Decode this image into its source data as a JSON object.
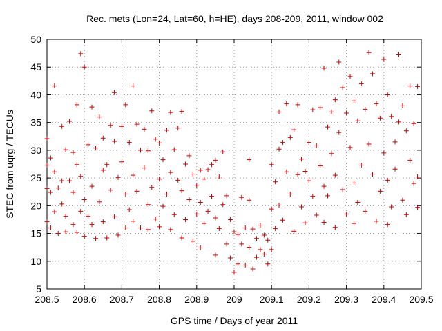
{
  "chart_data": {
    "type": "scatter",
    "title": "Rec. mets (Lon=24, Lat=60, h=HE), days 208-209, 2011, window 002",
    "xlabel": "GPS time / Days of year 2011",
    "ylabel": "STEC from uqrg / TECUs",
    "xlim": [
      208.5,
      209.5
    ],
    "ylim": [
      5,
      50
    ],
    "xticks": [
      208.5,
      208.6,
      208.7,
      208.8,
      208.9,
      209,
      209.1,
      209.2,
      209.3,
      209.4,
      209.5
    ],
    "xtick_labels": [
      "208.5",
      "208.6",
      "208.7",
      "208.8",
      "208.9",
      "209",
      "209.1",
      "209.2",
      "209.3",
      "209.4",
      "209.5"
    ],
    "yticks": [
      5,
      10,
      15,
      20,
      25,
      30,
      35,
      40,
      45,
      50
    ],
    "ytick_labels": [
      "5",
      "10",
      "15",
      "20",
      "25",
      "30",
      "35",
      "40",
      "45",
      "50"
    ],
    "grid": true,
    "marker": "plus",
    "color": "#cc0000",
    "series": [
      {
        "name": "STEC",
        "points": [
          [
            208.5,
            32.1
          ],
          [
            208.5,
            23.1
          ],
          [
            208.5,
            27.3
          ],
          [
            208.5,
            17.1
          ],
          [
            208.51,
            28.6
          ],
          [
            208.51,
            16.0
          ],
          [
            208.51,
            22.4
          ],
          [
            208.52,
            41.6
          ],
          [
            208.52,
            26.1
          ],
          [
            208.52,
            18.9
          ],
          [
            208.53,
            23.2
          ],
          [
            208.53,
            15.0
          ],
          [
            208.54,
            34.3
          ],
          [
            208.54,
            24.5
          ],
          [
            208.54,
            20.3
          ],
          [
            208.55,
            30.1
          ],
          [
            208.55,
            18.1
          ],
          [
            208.55,
            15.3
          ],
          [
            208.56,
            35.2
          ],
          [
            208.56,
            24.5
          ],
          [
            208.57,
            29.6
          ],
          [
            208.57,
            22.4
          ],
          [
            208.57,
            16.6
          ],
          [
            208.58,
            38.2
          ],
          [
            208.58,
            27.4
          ],
          [
            208.58,
            15.2
          ],
          [
            208.59,
            47.4
          ],
          [
            208.59,
            25.3
          ],
          [
            208.59,
            19.0
          ],
          [
            208.6,
            45.0
          ],
          [
            208.6,
            21.1
          ],
          [
            208.6,
            14.5
          ],
          [
            208.61,
            31.0
          ],
          [
            208.61,
            18.1
          ],
          [
            208.62,
            37.8
          ],
          [
            208.62,
            23.5
          ],
          [
            208.62,
            16.6
          ],
          [
            208.63,
            30.4
          ],
          [
            208.63,
            14.1
          ],
          [
            208.64,
            36.0
          ],
          [
            208.64,
            20.7
          ],
          [
            208.65,
            32.2
          ],
          [
            208.65,
            26.4
          ],
          [
            208.65,
            17.1
          ],
          [
            208.66,
            27.4
          ],
          [
            208.66,
            14.2
          ],
          [
            208.67,
            34.5
          ],
          [
            208.67,
            22.8
          ],
          [
            208.68,
            40.4
          ],
          [
            208.68,
            31.6
          ],
          [
            208.68,
            18.0
          ],
          [
            208.69,
            25.1
          ],
          [
            208.69,
            14.7
          ],
          [
            208.7,
            34.3
          ],
          [
            208.7,
            27.9
          ],
          [
            208.71,
            38.2
          ],
          [
            208.71,
            22.1
          ],
          [
            208.71,
            16.0
          ],
          [
            208.72,
            31.4
          ],
          [
            208.72,
            19.3
          ],
          [
            208.73,
            41.6
          ],
          [
            208.73,
            25.5
          ],
          [
            208.73,
            17.2
          ],
          [
            208.74,
            34.7
          ],
          [
            208.74,
            22.6
          ],
          [
            208.75,
            30.0
          ],
          [
            208.75,
            16.0
          ],
          [
            208.76,
            33.8
          ],
          [
            208.76,
            26.8
          ],
          [
            208.77,
            29.9
          ],
          [
            208.77,
            20.2
          ],
          [
            208.77,
            15.7
          ],
          [
            208.78,
            37.1
          ],
          [
            208.78,
            23.3
          ],
          [
            208.79,
            32.0
          ],
          [
            208.79,
            17.6
          ],
          [
            208.8,
            31.3
          ],
          [
            208.8,
            24.8
          ],
          [
            208.8,
            16.2
          ],
          [
            208.81,
            28.3
          ],
          [
            208.81,
            19.9
          ],
          [
            208.82,
            33.6
          ],
          [
            208.82,
            22.1
          ],
          [
            208.83,
            36.8
          ],
          [
            208.83,
            26.0
          ],
          [
            208.83,
            15.7
          ],
          [
            208.84,
            30.1
          ],
          [
            208.84,
            18.4
          ],
          [
            208.85,
            34.0
          ],
          [
            208.85,
            24.6
          ],
          [
            208.86,
            37.0
          ],
          [
            208.86,
            22.7
          ],
          [
            208.86,
            14.2
          ],
          [
            208.87,
            27.5
          ],
          [
            208.87,
            17.5
          ],
          [
            208.88,
            29.0
          ],
          [
            208.88,
            21.1
          ],
          [
            208.89,
            25.7
          ],
          [
            208.89,
            13.6
          ],
          [
            208.9,
            23.7
          ],
          [
            208.9,
            18.5
          ],
          [
            208.91,
            26.4
          ],
          [
            208.91,
            20.6
          ],
          [
            208.91,
            12.4
          ],
          [
            208.92,
            24.8
          ],
          [
            208.92,
            16.8
          ],
          [
            208.93,
            26.5
          ],
          [
            208.93,
            19.0
          ],
          [
            208.94,
            27.4
          ],
          [
            208.94,
            21.7
          ],
          [
            208.95,
            28.2
          ],
          [
            208.95,
            17.8
          ],
          [
            208.95,
            11.1
          ],
          [
            208.96,
            25.2
          ],
          [
            208.96,
            15.9
          ],
          [
            208.97,
            29.7
          ],
          [
            208.97,
            20.2
          ],
          [
            208.98,
            21.8
          ],
          [
            208.98,
            13.1
          ],
          [
            208.99,
            17.5
          ],
          [
            208.99,
            10.6
          ],
          [
            209.0,
            15.3
          ],
          [
            209.0,
            8.0
          ],
          [
            209.01,
            14.8
          ],
          [
            209.01,
            9.5
          ],
          [
            209.02,
            21.5
          ],
          [
            209.02,
            13.1
          ],
          [
            209.03,
            16.0
          ],
          [
            209.03,
            9.3
          ],
          [
            209.04,
            28.3
          ],
          [
            209.04,
            21.0
          ],
          [
            209.04,
            12.5
          ],
          [
            209.05,
            15.8
          ],
          [
            209.05,
            8.6
          ],
          [
            209.06,
            14.1
          ],
          [
            209.06,
            10.7
          ],
          [
            209.07,
            16.5
          ],
          [
            209.07,
            12.1
          ],
          [
            209.08,
            11.3
          ],
          [
            209.08,
            14.7
          ],
          [
            209.09,
            13.8
          ],
          [
            209.09,
            9.5
          ],
          [
            209.1,
            27.4
          ],
          [
            209.1,
            19.4
          ],
          [
            209.1,
            12.1
          ],
          [
            209.11,
            24.3
          ],
          [
            209.11,
            15.9
          ],
          [
            209.12,
            36.9
          ],
          [
            209.12,
            30.2
          ],
          [
            209.12,
            20.1
          ],
          [
            209.13,
            31.4
          ],
          [
            209.13,
            17.4
          ],
          [
            209.14,
            38.4
          ],
          [
            209.14,
            26.1
          ],
          [
            209.15,
            32.3
          ],
          [
            209.15,
            22.1
          ],
          [
            209.16,
            33.7
          ],
          [
            209.16,
            15.4
          ],
          [
            209.17,
            38.2
          ],
          [
            209.17,
            25.6
          ],
          [
            209.18,
            28.4
          ],
          [
            209.18,
            19.8
          ],
          [
            209.19,
            26.2
          ],
          [
            209.19,
            16.9
          ],
          [
            209.2,
            31.4
          ],
          [
            209.2,
            24.5
          ],
          [
            209.21,
            37.3
          ],
          [
            209.21,
            21.7
          ],
          [
            209.22,
            30.8
          ],
          [
            209.22,
            18.3
          ],
          [
            209.23,
            37.7
          ],
          [
            209.23,
            27.2
          ],
          [
            209.24,
            44.8
          ],
          [
            209.24,
            23.5
          ],
          [
            209.24,
            17.0
          ],
          [
            209.25,
            34.2
          ],
          [
            209.25,
            21.8
          ],
          [
            209.26,
            36.9
          ],
          [
            209.26,
            29.4
          ],
          [
            209.27,
            39.1
          ],
          [
            209.27,
            25.5
          ],
          [
            209.27,
            16.1
          ],
          [
            209.28,
            45.9
          ],
          [
            209.28,
            33.2
          ],
          [
            209.29,
            41.3
          ],
          [
            209.29,
            22.9
          ],
          [
            209.3,
            36.7
          ],
          [
            209.3,
            18.5
          ],
          [
            209.31,
            43.3
          ],
          [
            209.31,
            30.5
          ],
          [
            209.32,
            38.9
          ],
          [
            209.32,
            24.1
          ],
          [
            209.32,
            16.8
          ],
          [
            209.33,
            35.3
          ],
          [
            209.33,
            20.6
          ],
          [
            209.34,
            42.0
          ],
          [
            209.34,
            27.3
          ],
          [
            209.35,
            37.4
          ],
          [
            209.35,
            19.0
          ],
          [
            209.36,
            47.6
          ],
          [
            209.36,
            31.1
          ],
          [
            209.37,
            43.8
          ],
          [
            209.37,
            25.7
          ],
          [
            209.38,
            38.4
          ],
          [
            209.38,
            17.2
          ],
          [
            209.39,
            35.8
          ],
          [
            209.39,
            22.6
          ],
          [
            209.4,
            46.4
          ],
          [
            209.4,
            29.5
          ],
          [
            209.41,
            40.0
          ],
          [
            209.41,
            24.6
          ],
          [
            209.41,
            16.6
          ],
          [
            209.42,
            36.1
          ],
          [
            209.42,
            19.8
          ],
          [
            209.43,
            31.5
          ],
          [
            209.43,
            26.6
          ],
          [
            209.44,
            47.2
          ],
          [
            209.44,
            35.1
          ],
          [
            209.45,
            38.0
          ],
          [
            209.45,
            21.0
          ],
          [
            209.46,
            33.5
          ],
          [
            209.46,
            18.4
          ],
          [
            209.47,
            41.6
          ],
          [
            209.47,
            28.2
          ],
          [
            209.48,
            34.8
          ],
          [
            209.48,
            24.0
          ],
          [
            209.49,
            41.5
          ],
          [
            209.49,
            25.2
          ],
          [
            209.49,
            19.7
          ]
        ]
      }
    ]
  }
}
